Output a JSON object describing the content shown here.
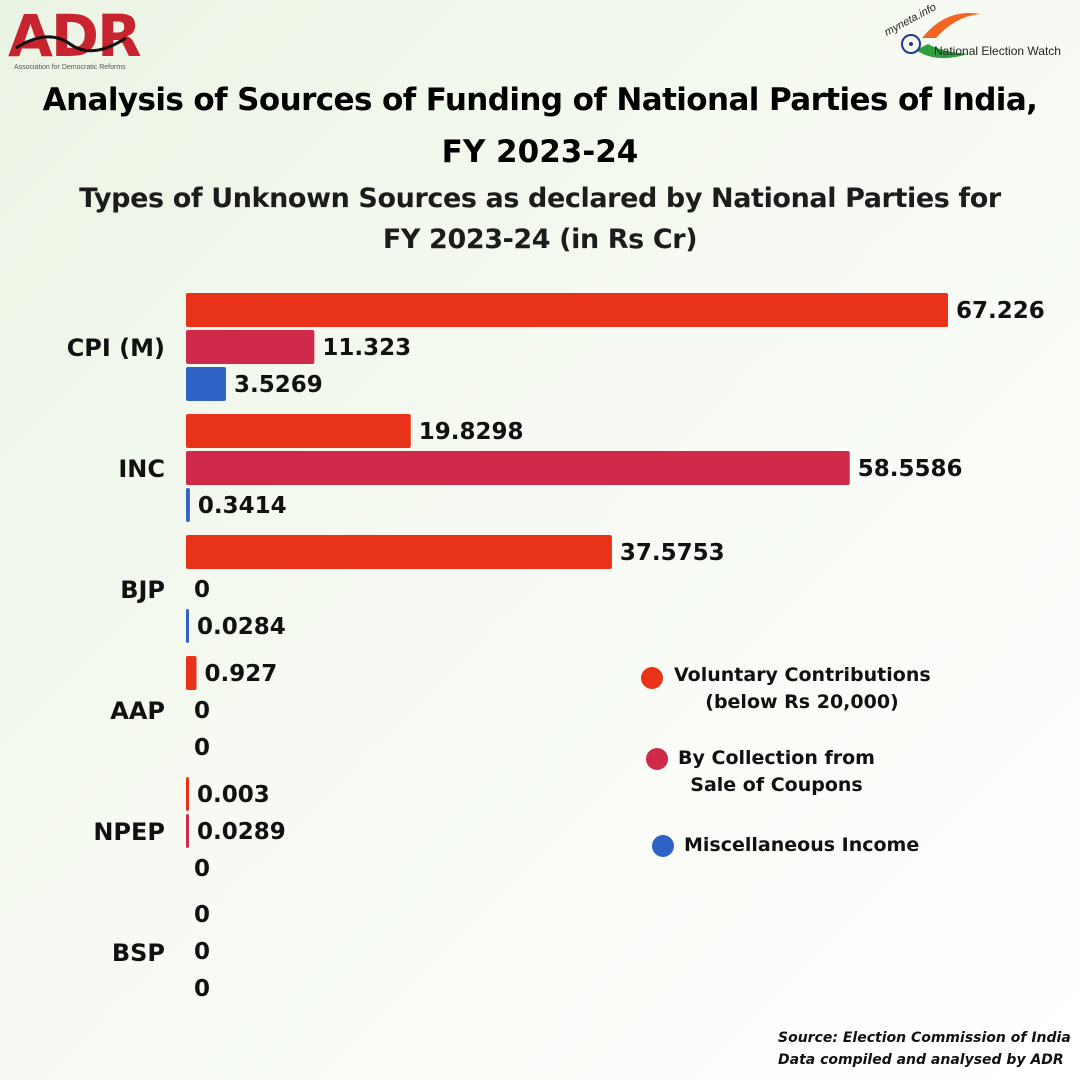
{
  "header": {
    "adr_logo_text": "ADR",
    "adr_logo_tagline": "Association for Democratic Reforms",
    "myneta_logo_text": "myneta.info",
    "new_logo_text": "National Election Watch"
  },
  "title_line1": "Analysis of Sources of Funding of National Parties of India,",
  "title_line2": "FY 2023-24",
  "subtitle_line1": "Types of Unknown Sources as declared by National Parties for",
  "subtitle_line2": "FY 2023-24 (in Rs Cr)",
  "legend": [
    {
      "line1": "Voluntary Contributions",
      "line2": "(below Rs 20,000)",
      "color": "#e8321a"
    },
    {
      "line1": "By Collection from",
      "line2": "Sale of Coupons",
      "color": "#d02a4a"
    },
    {
      "line1": "Miscellaneous Income",
      "line2": "",
      "color": "#2f62c4"
    }
  ],
  "source_line1": "Source: Election Commission of India",
  "source_line2": "Data compiled and analysed by ADR",
  "chart_data": {
    "type": "bar",
    "orientation": "horizontal",
    "categories": [
      "CPI (M)",
      "INC",
      "BJP",
      "AAP",
      "NPEP",
      "BSP"
    ],
    "series": [
      {
        "name": "Voluntary Contributions (below Rs 20,000)",
        "color": "#e8321a",
        "values": [
          67.226,
          19.8298,
          37.5753,
          0.927,
          0.003,
          0
        ],
        "labels": [
          "67.226",
          "19.8298",
          "37.5753",
          "0.927",
          "0.003",
          "0"
        ]
      },
      {
        "name": "By Collection from Sale of Coupons",
        "color": "#d02a4a",
        "values": [
          11.323,
          58.5586,
          0,
          0,
          0.0289,
          0
        ],
        "labels": [
          "11.323",
          "58.5586",
          "0",
          "0",
          "0.0289",
          "0"
        ]
      },
      {
        "name": "Miscellaneous Income",
        "color": "#2f62c4",
        "values": [
          3.5269,
          0.3414,
          0.0284,
          0,
          0,
          0
        ],
        "labels": [
          "3.5269",
          "0.3414",
          "0.0284",
          "0",
          "0",
          "0"
        ]
      }
    ],
    "xlim": [
      0,
      67.226
    ],
    "grid": false,
    "legend_position": "right"
  }
}
